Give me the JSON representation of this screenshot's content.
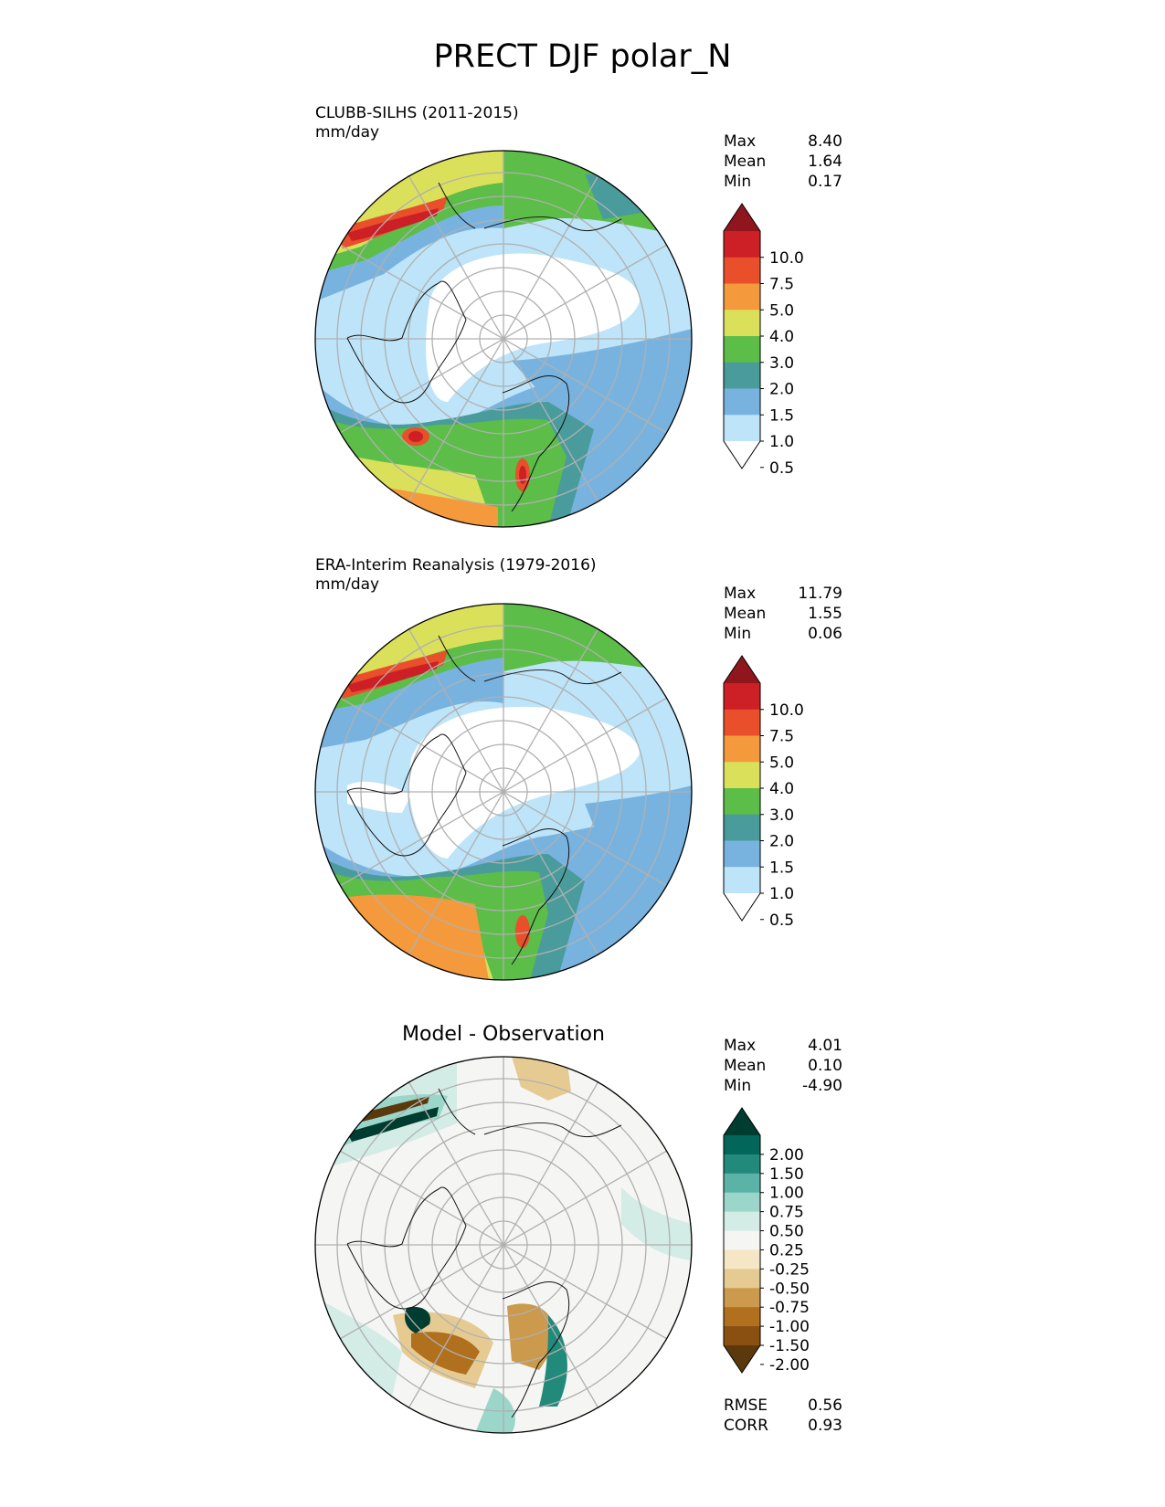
{
  "title": "PRECT DJF polar_N",
  "colors": {
    "precip_levels": [
      "#ffffff",
      "#bde4f8",
      "#78b3e0",
      "#4a9c9c",
      "#5cbd48",
      "#dbe05a",
      "#f59a3c",
      "#ea4f2b",
      "#cc1f26",
      "#8f161c"
    ],
    "diff_levels": [
      "#5a3a0c",
      "#8a5012",
      "#b0701e",
      "#cb9a4c",
      "#e5cb92",
      "#f5e6c6",
      "#f5f5f3",
      "#d3ece6",
      "#9ad6ca",
      "#5bb2a6",
      "#218a7b",
      "#02665a",
      "#013c30"
    ],
    "land_outline": "#111111",
    "grid": "#b0b0b0"
  },
  "panels": [
    {
      "label_line1": "CLUBB-SILHS (2011-2015)",
      "label_line2": "mm/day",
      "stats": {
        "max_label": "Max",
        "max": "8.40",
        "mean_label": "Mean",
        "mean": "1.64",
        "min_label": "Min",
        "min": "0.17"
      },
      "colorbar_ticks": [
        "10.0",
        "7.5",
        "5.0",
        "4.0",
        "3.0",
        "2.0",
        "1.5",
        "1.0",
        "0.5"
      ]
    },
    {
      "label_line1": "ERA-Interim Reanalysis (1979-2016)",
      "label_line2": "mm/day",
      "stats": {
        "max_label": "Max",
        "max": "11.79",
        "mean_label": "Mean",
        "mean": "1.55",
        "min_label": "Min",
        "min": "0.06"
      },
      "colorbar_ticks": [
        "10.0",
        "7.5",
        "5.0",
        "4.0",
        "3.0",
        "2.0",
        "1.5",
        "1.0",
        "0.5"
      ]
    },
    {
      "title": "Model - Observation",
      "stats": {
        "max_label": "Max",
        "max": "4.01",
        "mean_label": "Mean",
        "mean": "0.10",
        "min_label": "Min",
        "min": "-4.90"
      },
      "colorbar_ticks": [
        "2.00",
        "1.50",
        "1.00",
        "0.75",
        "0.50",
        "0.25",
        "-0.25",
        "-0.50",
        "-0.75",
        "-1.00",
        "-1.50",
        "-2.00"
      ],
      "metrics": {
        "rmse_label": "RMSE",
        "rmse": "0.56",
        "corr_label": "CORR",
        "corr": "0.93"
      }
    }
  ]
}
